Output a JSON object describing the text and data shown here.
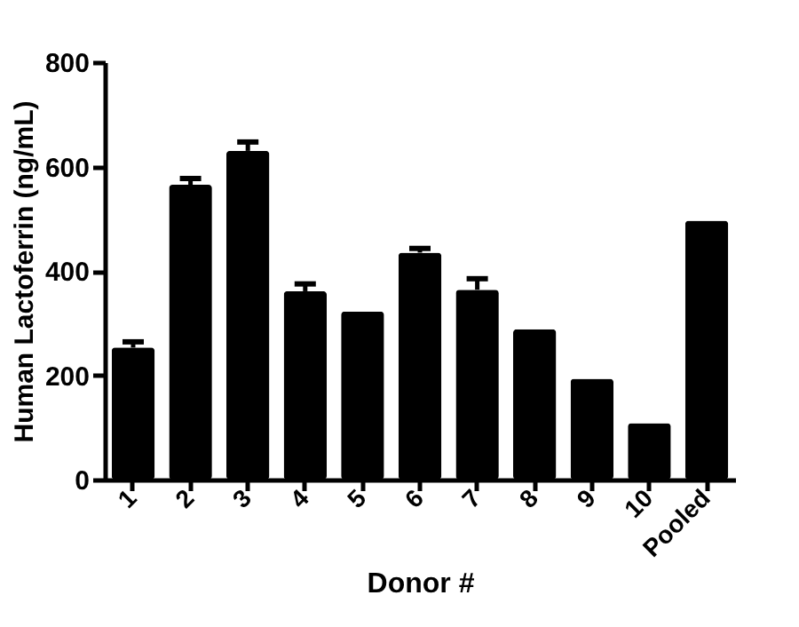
{
  "chart_data": {
    "type": "bar",
    "xlabel": "Donor #",
    "ylabel": "Human Lactoferrin (ng/mL)",
    "categories": [
      "1",
      "2",
      "3",
      "4",
      "5",
      "6",
      "7",
      "8",
      "9",
      "10",
      "Pooled"
    ],
    "values": [
      253,
      565,
      630,
      361,
      322,
      435,
      364,
      288,
      193,
      108,
      496
    ],
    "errors": [
      [
        253,
        264
      ],
      [
        565,
        577
      ],
      [
        630,
        647
      ],
      [
        361,
        375
      ],
      null,
      [
        435,
        443
      ],
      [
        364,
        385
      ],
      null,
      null,
      null,
      null
    ],
    "color": "#000000",
    "ylim": [
      0,
      800
    ],
    "yticks": [
      0,
      200,
      400,
      600,
      800
    ],
    "grid": false
  }
}
